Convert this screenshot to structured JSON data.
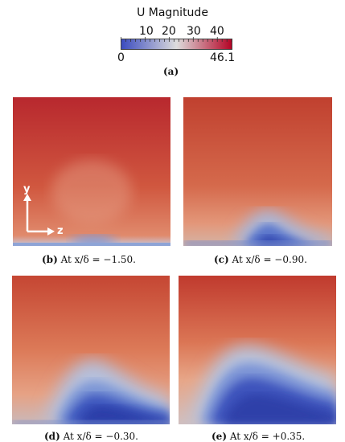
{
  "colorbar": {
    "title": "U Magnitude",
    "min_label": "0",
    "max_label": "46.1",
    "ticks": [
      "10",
      "20",
      "30",
      "40"
    ],
    "min": 0,
    "max": 46.1,
    "colors": [
      "#3b4cc0",
      "#dddcdc",
      "#b40426"
    ]
  },
  "captions": {
    "a": "(a)",
    "b_tag": "(b)",
    "b_text": "At x/δ = −1.50.",
    "c_tag": "(c)",
    "c_text": "At x/δ = −0.90.",
    "d_tag": "(d)",
    "d_text": "At x/δ = −0.30.",
    "e_tag": "(e)",
    "e_text": "At x/δ = +0.35."
  },
  "axes": {
    "y": "y",
    "z": "z"
  }
}
